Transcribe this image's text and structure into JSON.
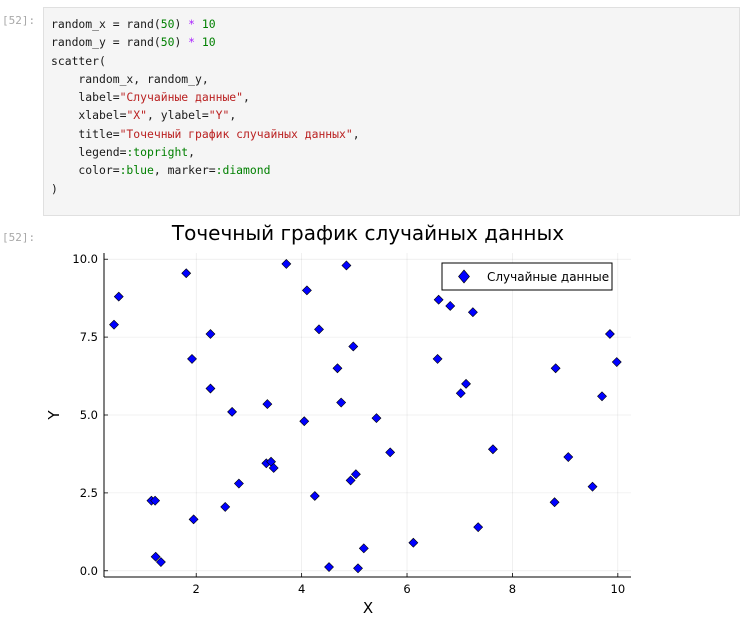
{
  "input_prompt": "[52]:",
  "output_prompt": "[52]:",
  "code_lines": [
    [
      {
        "t": "random_x = rand(",
        "c": ""
      },
      {
        "t": "50",
        "c": "num"
      },
      {
        "t": ") ",
        "c": ""
      },
      {
        "t": "*",
        "c": "op"
      },
      {
        "t": " ",
        "c": ""
      },
      {
        "t": "10",
        "c": "num"
      }
    ],
    [
      {
        "t": "random_y = rand(",
        "c": ""
      },
      {
        "t": "50",
        "c": "num"
      },
      {
        "t": ") ",
        "c": ""
      },
      {
        "t": "*",
        "c": "op"
      },
      {
        "t": " ",
        "c": ""
      },
      {
        "t": "10",
        "c": "num"
      }
    ],
    [
      {
        "t": "scatter(",
        "c": ""
      }
    ],
    [
      {
        "t": "    random_x, random_y,",
        "c": ""
      }
    ],
    [
      {
        "t": "    label=",
        "c": ""
      },
      {
        "t": "\"Случайные данные\"",
        "c": "str"
      },
      {
        "t": ",",
        "c": ""
      }
    ],
    [
      {
        "t": "    xlabel=",
        "c": ""
      },
      {
        "t": "\"X\"",
        "c": "str"
      },
      {
        "t": ", ylabel=",
        "c": ""
      },
      {
        "t": "\"Y\"",
        "c": "str"
      },
      {
        "t": ",",
        "c": ""
      }
    ],
    [
      {
        "t": "    title=",
        "c": ""
      },
      {
        "t": "\"Точечный график случайных данных\"",
        "c": "str"
      },
      {
        "t": ",",
        "c": ""
      }
    ],
    [
      {
        "t": "    legend=",
        "c": ""
      },
      {
        "t": ":topright",
        "c": "sym"
      },
      {
        "t": ",",
        "c": ""
      }
    ],
    [
      {
        "t": "    color=",
        "c": ""
      },
      {
        "t": ":blue",
        "c": "sym"
      },
      {
        "t": ", marker=",
        "c": ""
      },
      {
        "t": ":diamond",
        "c": "sym"
      }
    ],
    [
      {
        "t": ")",
        "c": ""
      }
    ]
  ],
  "chart_data": {
    "type": "scatter",
    "title": "Точечный график случайных данных",
    "xlabel": "X",
    "ylabel": "Y",
    "xlim": [
      0.25,
      10.25
    ],
    "ylim": [
      -0.2,
      10.2
    ],
    "xticks": [
      2,
      4,
      6,
      8,
      10
    ],
    "xtick_labels": [
      "2",
      "4",
      "6",
      "8",
      "10"
    ],
    "yticks": [
      0,
      2.5,
      5,
      7.5,
      10
    ],
    "ytick_labels": [
      "0.0",
      "2.5",
      "5.0",
      "7.5",
      "10.0"
    ],
    "grid": true,
    "legend_position": "top-right",
    "marker": "diamond",
    "color": "#0000ff",
    "series": [
      {
        "name": "Случайные данные",
        "points": [
          [
            0.44,
            7.9
          ],
          [
            0.53,
            8.8
          ],
          [
            1.81,
            9.55
          ],
          [
            3.71,
            9.85
          ],
          [
            4.85,
            9.8
          ],
          [
            4.1,
            9.0
          ],
          [
            2.27,
            7.6
          ],
          [
            1.92,
            6.8
          ],
          [
            4.33,
            7.75
          ],
          [
            4.98,
            7.2
          ],
          [
            4.68,
            6.5
          ],
          [
            2.27,
            5.85
          ],
          [
            2.68,
            5.1
          ],
          [
            3.35,
            5.35
          ],
          [
            4.75,
            5.4
          ],
          [
            4.05,
            4.8
          ],
          [
            5.42,
            4.9
          ],
          [
            3.33,
            3.45
          ],
          [
            3.42,
            3.5
          ],
          [
            3.47,
            3.3
          ],
          [
            5.68,
            3.8
          ],
          [
            2.81,
            2.8
          ],
          [
            4.93,
            2.9
          ],
          [
            5.03,
            3.1
          ],
          [
            4.25,
            2.4
          ],
          [
            1.15,
            2.25
          ],
          [
            1.22,
            2.25
          ],
          [
            2.55,
            2.05
          ],
          [
            1.95,
            1.65
          ],
          [
            1.23,
            0.45
          ],
          [
            1.33,
            0.28
          ],
          [
            4.52,
            0.12
          ],
          [
            5.18,
            0.72
          ],
          [
            5.07,
            0.08
          ],
          [
            6.12,
            0.9
          ],
          [
            6.6,
            8.7
          ],
          [
            6.82,
            8.5
          ],
          [
            7.25,
            8.3
          ],
          [
            6.58,
            6.8
          ],
          [
            7.12,
            6.0
          ],
          [
            7.02,
            5.7
          ],
          [
            7.63,
            3.9
          ],
          [
            7.35,
            1.4
          ],
          [
            8.82,
            6.5
          ],
          [
            8.8,
            2.2
          ],
          [
            9.06,
            3.65
          ],
          [
            9.52,
            2.7
          ],
          [
            9.7,
            5.6
          ],
          [
            9.85,
            7.6
          ],
          [
            9.98,
            6.7
          ]
        ]
      }
    ]
  }
}
